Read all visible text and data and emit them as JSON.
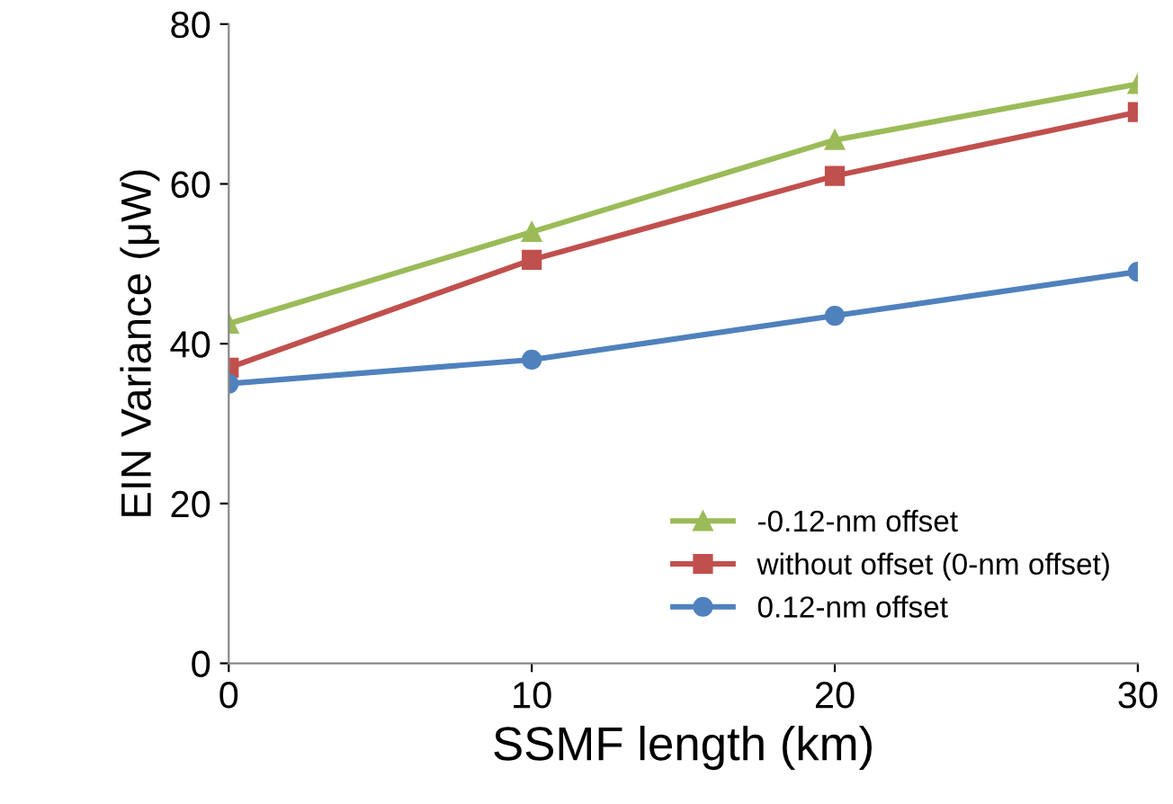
{
  "chart_data": {
    "type": "line",
    "xlabel": "SSMF length (km)",
    "ylabel": "EIN Variance (μW)",
    "x": [
      0,
      10,
      20,
      30
    ],
    "xlim": [
      0,
      30
    ],
    "xticks": [
      0,
      10,
      20,
      30
    ],
    "ylim": [
      0,
      80
    ],
    "yticks": [
      0,
      20,
      40,
      60,
      80
    ],
    "series": [
      {
        "name": "-0.12-nm offset",
        "color": "#9bbb59",
        "marker": "triangle",
        "values": [
          42.5,
          54,
          65.5,
          72.5
        ]
      },
      {
        "name": "without offset (0-nm offset)",
        "color": "#c0504d",
        "marker": "square",
        "values": [
          37,
          50.5,
          61,
          69
        ]
      },
      {
        "name": "0.12-nm offset",
        "color": "#4f81bd",
        "marker": "circle",
        "values": [
          35,
          38,
          43.5,
          49
        ]
      }
    ],
    "legend": "bottom right",
    "grid": false
  }
}
